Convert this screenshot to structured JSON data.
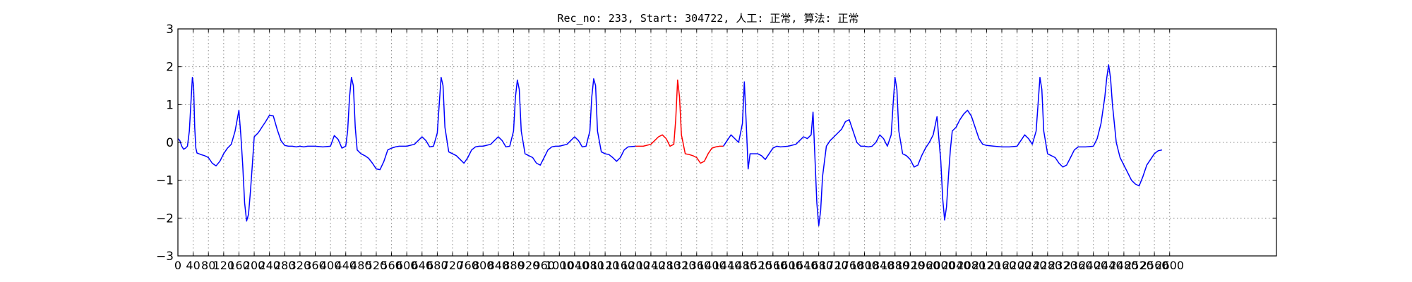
{
  "chart_data": {
    "type": "line",
    "title": "Rec_no: 233, Start: 304722, 人工: 正常, 算法: 正常",
    "xlabel": "",
    "ylabel": "",
    "xlim": [
      0,
      2880
    ],
    "ylim": [
      -3,
      3
    ],
    "grid": true,
    "y_ticks": [
      -3,
      -2,
      -1,
      0,
      1,
      2,
      3
    ],
    "y_tick_labels": [
      "−3",
      "−2",
      "−1",
      "0",
      "1",
      "2",
      "3"
    ],
    "x_ticks": [
      0,
      40,
      80,
      120,
      160,
      200,
      240,
      280,
      320,
      360,
      400,
      440,
      480,
      520,
      560,
      600,
      640,
      680,
      720,
      760,
      800,
      840,
      880,
      920,
      960,
      1000,
      1040,
      1080,
      1120,
      1160,
      1200,
      1240,
      1280,
      1320,
      1360,
      1400,
      1440,
      1480,
      1520,
      1560,
      1600,
      1640,
      1680,
      1720,
      1760,
      1800,
      1840,
      1880,
      1920,
      1960,
      2000,
      2040,
      2080,
      2120,
      2160,
      2200,
      2240,
      2280,
      2320,
      2360,
      2400,
      2440,
      2480,
      2520,
      2560,
      2600
    ],
    "x_tick_labels": [
      "0",
      "40",
      "80",
      "120",
      "160",
      "200",
      "240",
      "280",
      "320",
      "360",
      "400",
      "440",
      "480",
      "520",
      "560",
      "600",
      "640",
      "680",
      "720",
      "760",
      "800",
      "840",
      "880",
      "920",
      "960",
      "1000",
      "1040",
      "1080",
      "1120",
      "1160",
      "1200",
      "1240",
      "1280",
      "1320",
      "1360",
      "1400",
      "1440",
      "1480",
      "1520",
      "1560",
      "1600",
      "1640",
      "1680",
      "1720",
      "1760",
      "1800",
      "1840",
      "1880",
      "1920",
      "1960",
      "2000",
      "2040",
      "2080",
      "2120",
      "2160",
      "2200",
      "2240",
      "2280",
      "2320",
      "2360",
      "2400",
      "2440",
      "2480",
      "2520",
      "2560",
      "2600"
    ],
    "series": [
      {
        "color": "#0000ff",
        "x": [
          0,
          5,
          10,
          15,
          20,
          25,
          30,
          35,
          38,
          41,
          44,
          47,
          50,
          55,
          60,
          70,
          80,
          90,
          100,
          110,
          120,
          130,
          140,
          150,
          160,
          165,
          170,
          175,
          180,
          185,
          190,
          195,
          200,
          205,
          210,
          215,
          220,
          230,
          240,
          250,
          260,
          270,
          280,
          290,
          300,
          310,
          320,
          330,
          340,
          360,
          380,
          400,
          410,
          420,
          430,
          440,
          445,
          450,
          455,
          460,
          465,
          470,
          480,
          490,
          500,
          510,
          520,
          530,
          540,
          550,
          560,
          570,
          580,
          600,
          620,
          640,
          650,
          660,
          670,
          680,
          685,
          690,
          695,
          700,
          710,
          720,
          730,
          740,
          750,
          760,
          770,
          780,
          790,
          800,
          820,
          840,
          850,
          860,
          870,
          880,
          885,
          890,
          895,
          900,
          910,
          920,
          930,
          940,
          950,
          960,
          970,
          980,
          990,
          1000,
          1020,
          1040,
          1050,
          1060,
          1070,
          1080,
          1085,
          1090,
          1095,
          1100,
          1110,
          1120,
          1130,
          1140,
          1150,
          1160,
          1170,
          1180,
          1200
        ],
        "y": [
          0.1,
          0.05,
          -0.1,
          -0.18,
          -0.15,
          -0.1,
          0.3,
          1.2,
          1.72,
          1.5,
          0.4,
          -0.15,
          -0.28,
          -0.3,
          -0.32,
          -0.35,
          -0.4,
          -0.55,
          -0.62,
          -0.5,
          -0.3,
          -0.15,
          -0.05,
          0.3,
          0.85,
          0.2,
          -0.6,
          -1.6,
          -2.08,
          -1.9,
          -1.3,
          -0.6,
          0.15,
          0.2,
          0.25,
          0.32,
          0.4,
          0.55,
          0.72,
          0.7,
          0.35,
          0.05,
          -0.08,
          -0.1,
          -0.1,
          -0.12,
          -0.1,
          -0.12,
          -0.1,
          -0.1,
          -0.12,
          -0.1,
          0.18,
          0.08,
          -0.15,
          -0.1,
          0.3,
          1.2,
          1.72,
          1.5,
          0.4,
          -0.2,
          -0.3,
          -0.35,
          -0.42,
          -0.55,
          -0.7,
          -0.72,
          -0.5,
          -0.2,
          -0.15,
          -0.12,
          -0.1,
          -0.1,
          -0.05,
          0.15,
          0.05,
          -0.12,
          -0.1,
          0.25,
          1.0,
          1.72,
          1.5,
          0.4,
          -0.25,
          -0.3,
          -0.35,
          -0.45,
          -0.55,
          -0.4,
          -0.2,
          -0.12,
          -0.1,
          -0.1,
          -0.05,
          0.15,
          0.05,
          -0.12,
          -0.1,
          0.3,
          1.2,
          1.65,
          1.4,
          0.3,
          -0.3,
          -0.35,
          -0.4,
          -0.55,
          -0.6,
          -0.4,
          -0.2,
          -0.12,
          -0.1,
          -0.1,
          -0.05,
          0.15,
          0.05,
          -0.12,
          -0.1,
          0.3,
          1.2,
          1.68,
          1.5,
          0.3,
          -0.25,
          -0.3,
          -0.32,
          -0.4,
          -0.5,
          -0.4,
          -0.2,
          -0.12,
          -0.1
        ]
      },
      {
        "color": "#ff0000",
        "x": [
          1200,
          1220,
          1240,
          1260,
          1270,
          1280,
          1290,
          1300,
          1305,
          1310,
          1315,
          1320,
          1330,
          1340,
          1350,
          1360,
          1370,
          1380,
          1390,
          1400,
          1410,
          1420,
          1430
        ],
        "y": [
          -0.1,
          -0.1,
          -0.05,
          0.15,
          0.2,
          0.1,
          -0.1,
          -0.05,
          0.6,
          1.65,
          1.2,
          0.2,
          -0.3,
          -0.32,
          -0.35,
          -0.4,
          -0.55,
          -0.5,
          -0.3,
          -0.15,
          -0.12,
          -0.1,
          -0.1
        ]
      },
      {
        "color": "#0000ff",
        "x": [
          1430,
          1440,
          1450,
          1460,
          1470,
          1480,
          1485,
          1490,
          1495,
          1500,
          1510,
          1520,
          1530,
          1540,
          1550,
          1560,
          1570,
          1580,
          1600,
          1620,
          1640,
          1650,
          1660,
          1665,
          1670,
          1675,
          1680,
          1685,
          1690,
          1700,
          1710,
          1720,
          1730,
          1740,
          1750,
          1760,
          1770,
          1780,
          1790,
          1800,
          1810,
          1820,
          1830,
          1840,
          1850,
          1860,
          1870,
          1875,
          1880,
          1885,
          1890,
          1900,
          1910,
          1920,
          1930,
          1940,
          1950,
          1960,
          1970,
          1980,
          1990,
          2000,
          2005,
          2010,
          2015,
          2020,
          2025,
          2030,
          2040,
          2050,
          2060,
          2070,
          2080,
          2090,
          2100,
          2110,
          2120,
          2140,
          2160,
          2180,
          2200,
          2220,
          2230,
          2240,
          2250,
          2255,
          2260,
          2265,
          2270,
          2280,
          2290,
          2300,
          2310,
          2320,
          2330,
          2340,
          2350,
          2360,
          2380,
          2400,
          2410,
          2420,
          2430,
          2435,
          2440,
          2445,
          2450,
          2460,
          2470,
          2480,
          2490,
          2500,
          2510,
          2520,
          2530,
          2540,
          2560,
          2570,
          2580
        ],
        "y": [
          -0.1,
          0.05,
          0.2,
          0.1,
          0.0,
          0.5,
          1.6,
          0.5,
          -0.7,
          -0.3,
          -0.3,
          -0.3,
          -0.35,
          -0.45,
          -0.3,
          -0.15,
          -0.1,
          -0.12,
          -0.1,
          -0.05,
          0.15,
          0.1,
          0.2,
          0.8,
          -0.4,
          -1.6,
          -2.2,
          -1.8,
          -0.9,
          -0.1,
          0.05,
          0.15,
          0.25,
          0.35,
          0.55,
          0.6,
          0.3,
          0.0,
          -0.1,
          -0.1,
          -0.12,
          -0.1,
          0.0,
          0.2,
          0.1,
          -0.1,
          0.2,
          1.0,
          1.72,
          1.4,
          0.3,
          -0.3,
          -0.35,
          -0.45,
          -0.65,
          -0.6,
          -0.35,
          -0.15,
          0.0,
          0.2,
          0.68,
          -0.5,
          -1.5,
          -2.05,
          -1.7,
          -0.9,
          -0.2,
          0.3,
          0.4,
          0.6,
          0.75,
          0.85,
          0.7,
          0.4,
          0.1,
          -0.05,
          -0.08,
          -0.1,
          -0.12,
          -0.12,
          -0.1,
          0.2,
          0.1,
          -0.05,
          0.3,
          1.0,
          1.72,
          1.4,
          0.3,
          -0.3,
          -0.35,
          -0.4,
          -0.55,
          -0.65,
          -0.6,
          -0.4,
          -0.2,
          -0.12,
          -0.12,
          -0.1,
          0.1,
          0.5,
          1.2,
          1.7,
          2.05,
          1.7,
          1.0,
          0.0,
          -0.4,
          -0.6,
          -0.8,
          -1.0,
          -1.1,
          -1.15,
          -0.9,
          -0.6,
          -0.3,
          -0.22,
          -0.2
        ]
      }
    ]
  }
}
